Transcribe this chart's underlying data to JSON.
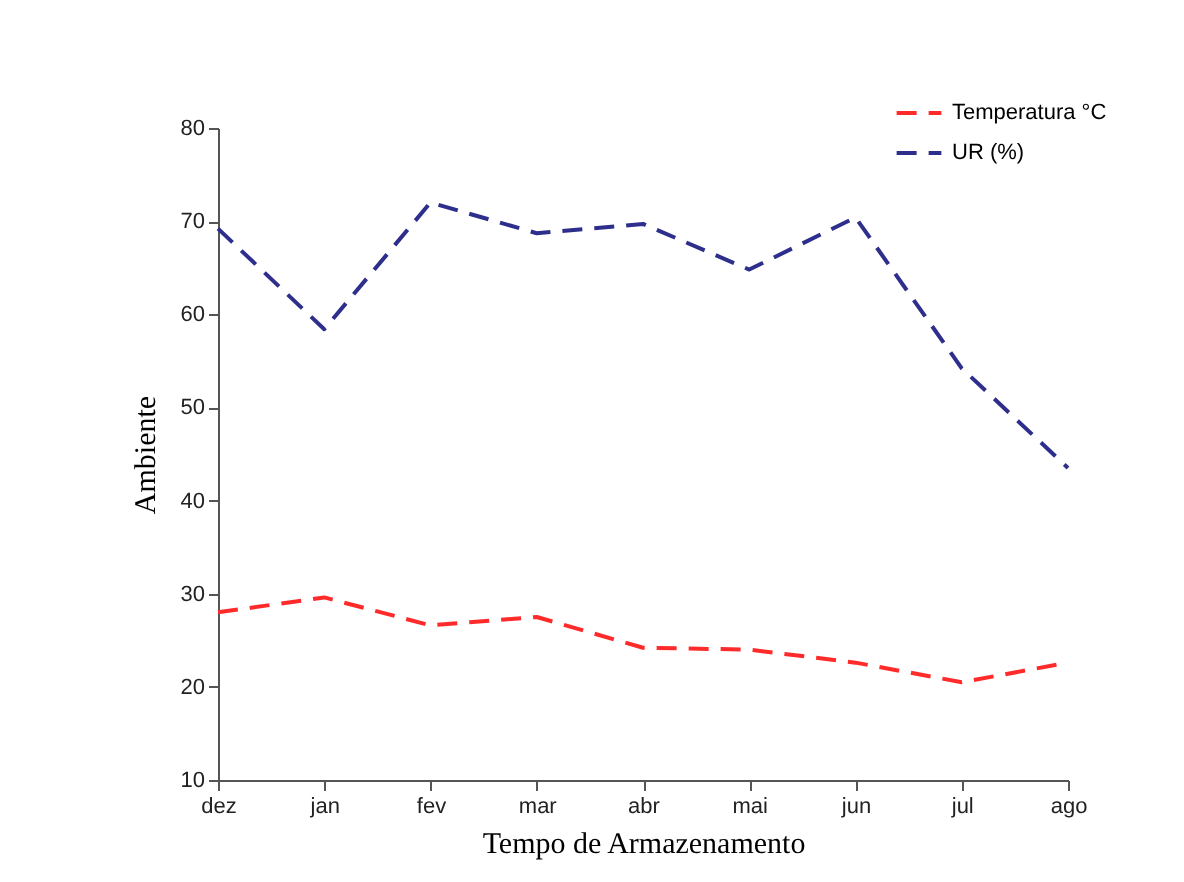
{
  "chart_data": {
    "type": "line",
    "xlabel": "Tempo de Armazenamento",
    "ylabel": "Ambiente",
    "categories": [
      "dez",
      "jan",
      "fev",
      "mar",
      "abr",
      "mai",
      "jun",
      "jul",
      "ago"
    ],
    "series": [
      {
        "name": "Temperatura °C",
        "color": "#ff2a2a",
        "values": [
          28.0,
          29.6,
          26.6,
          27.5,
          24.2,
          24.0,
          22.6,
          20.5,
          22.6
        ]
      },
      {
        "name": "UR (%)",
        "color": "#2e2e8c",
        "values": [
          69.2,
          58.4,
          72.0,
          68.7,
          69.7,
          64.8,
          70.4,
          54.2,
          43.5
        ]
      }
    ],
    "ylim": [
      10,
      80
    ],
    "yticks": [
      10,
      20,
      30,
      40,
      50,
      60,
      70,
      80
    ],
    "grid": false,
    "legend": "top right",
    "line_style": "dashed",
    "marker": "none"
  }
}
